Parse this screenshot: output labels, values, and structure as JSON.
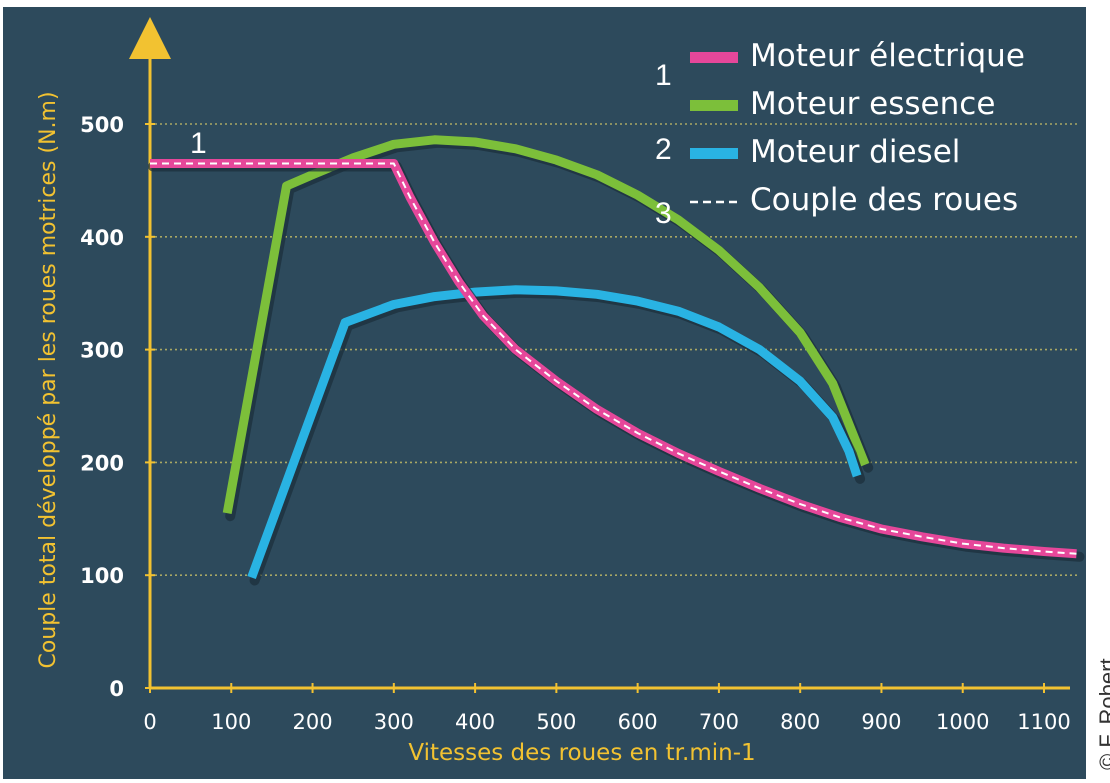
{
  "chart_data": {
    "type": "line",
    "xlabel": "Vitesses des roues en tr.min-1",
    "ylabel": "Couple total développé par les roues motrices (N.m)",
    "xlim": [
      0,
      1150
    ],
    "ylim": [
      0,
      500
    ],
    "x_ticks": [
      "0",
      "100",
      "200",
      "300",
      "400",
      "500",
      "600",
      "700",
      "800",
      "900",
      "1000",
      "1100"
    ],
    "y_ticks": [
      "0",
      "100",
      "200",
      "300",
      "400",
      "500"
    ],
    "grid": "horizontal dotted",
    "legend_position": "top-right",
    "series": [
      {
        "name": "Moteur électrique",
        "color": "#e6479a",
        "points": [
          [
            0,
            465
          ],
          [
            300,
            465
          ],
          [
            320,
            435
          ],
          [
            350,
            395
          ],
          [
            380,
            360
          ],
          [
            410,
            330
          ],
          [
            450,
            300
          ],
          [
            500,
            272
          ],
          [
            550,
            247
          ],
          [
            600,
            226
          ],
          [
            650,
            208
          ],
          [
            700,
            192
          ],
          [
            750,
            177
          ],
          [
            800,
            163
          ],
          [
            850,
            151
          ],
          [
            900,
            141
          ],
          [
            950,
            134
          ],
          [
            1000,
            128
          ],
          [
            1050,
            124
          ],
          [
            1100,
            121
          ],
          [
            1140,
            119
          ]
        ]
      },
      {
        "name": "Moteur essence",
        "color": "#7cbf3a",
        "points": [
          [
            95,
            155
          ],
          [
            168,
            445
          ],
          [
            200,
            455
          ],
          [
            250,
            470
          ],
          [
            300,
            482
          ],
          [
            350,
            486
          ],
          [
            400,
            484
          ],
          [
            450,
            478
          ],
          [
            500,
            468
          ],
          [
            550,
            455
          ],
          [
            600,
            437
          ],
          [
            650,
            415
          ],
          [
            700,
            388
          ],
          [
            750,
            355
          ],
          [
            800,
            315
          ],
          [
            840,
            270
          ],
          [
            865,
            225
          ],
          [
            880,
            198
          ]
        ]
      },
      {
        "name": "Moteur diesel",
        "color": "#29b3e3",
        "points": [
          [
            125,
            98
          ],
          [
            240,
            324
          ],
          [
            300,
            340
          ],
          [
            350,
            347
          ],
          [
            400,
            351
          ],
          [
            450,
            353
          ],
          [
            500,
            352
          ],
          [
            550,
            349
          ],
          [
            600,
            343
          ],
          [
            650,
            334
          ],
          [
            700,
            320
          ],
          [
            750,
            300
          ],
          [
            800,
            272
          ],
          [
            840,
            240
          ],
          [
            860,
            210
          ],
          [
            870,
            188
          ]
        ]
      },
      {
        "name": "Couple des roues",
        "color": "#ffffff",
        "dashed": true,
        "points": [
          [
            0,
            465
          ],
          [
            300,
            465
          ],
          [
            320,
            435
          ],
          [
            350,
            395
          ],
          [
            380,
            360
          ],
          [
            410,
            330
          ],
          [
            450,
            300
          ],
          [
            500,
            272
          ],
          [
            550,
            247
          ],
          [
            600,
            226
          ],
          [
            650,
            208
          ],
          [
            700,
            192
          ],
          [
            750,
            177
          ],
          [
            800,
            163
          ],
          [
            850,
            151
          ],
          [
            900,
            141
          ],
          [
            950,
            134
          ],
          [
            1000,
            128
          ],
          [
            1050,
            124
          ],
          [
            1100,
            121
          ],
          [
            1140,
            119
          ]
        ]
      }
    ],
    "annotations": [
      "1",
      "1",
      "2",
      "3"
    ]
  },
  "credit": "© F. Robert"
}
